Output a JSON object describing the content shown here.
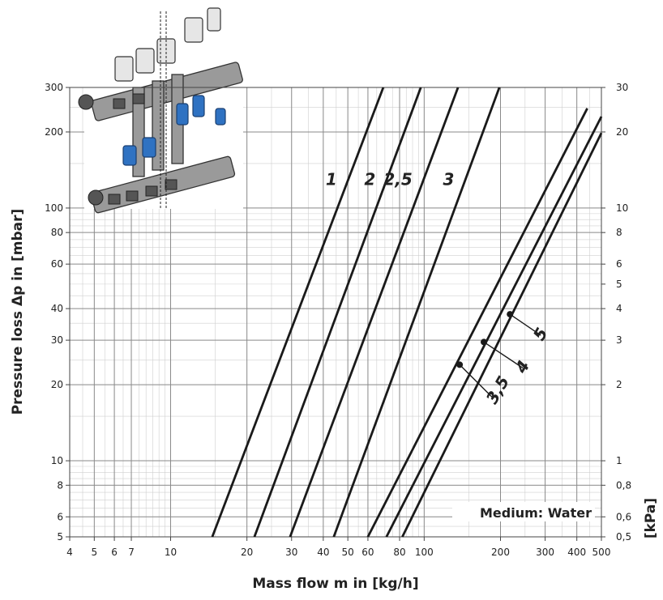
{
  "chart_data": {
    "type": "line",
    "title": "",
    "xlabel": "Mass flow m in [kg/h]",
    "ylabel_left": "Pressure loss Δp in [mbar]",
    "ylabel_right": "[kPa]",
    "x_scale": "log",
    "y_scale": "log",
    "xlim": [
      4,
      500
    ],
    "ylim": [
      5,
      300
    ],
    "grid": true,
    "annotation": "Medium: Water",
    "x_ticks": [
      {
        "v": 4,
        "label": "4"
      },
      {
        "v": 5,
        "label": "5"
      },
      {
        "v": 6,
        "label": "6"
      },
      {
        "v": 7,
        "label": "7"
      },
      {
        "v": 10,
        "label": "10"
      },
      {
        "v": 20,
        "label": "20"
      },
      {
        "v": 30,
        "label": "30"
      },
      {
        "v": 40,
        "label": "40"
      },
      {
        "v": 50,
        "label": "50"
      },
      {
        "v": 60,
        "label": "60"
      },
      {
        "v": 80,
        "label": "80"
      },
      {
        "v": 100,
        "label": "100"
      },
      {
        "v": 200,
        "label": "200"
      },
      {
        "v": 300,
        "label": "300"
      },
      {
        "v": 400,
        "label": "400"
      },
      {
        "v": 500,
        "label": "500"
      }
    ],
    "y_ticks_left": [
      {
        "v": 5,
        "label": "5"
      },
      {
        "v": 6,
        "label": "6"
      },
      {
        "v": 8,
        "label": "8"
      },
      {
        "v": 10,
        "label": "10"
      },
      {
        "v": 20,
        "label": "20"
      },
      {
        "v": 30,
        "label": "30"
      },
      {
        "v": 40,
        "label": "40"
      },
      {
        "v": 60,
        "label": "60"
      },
      {
        "v": 80,
        "label": "80"
      },
      {
        "v": 100,
        "label": "100"
      },
      {
        "v": 200,
        "label": "200"
      },
      {
        "v": 300,
        "label": "300"
      }
    ],
    "y_ticks_right": [
      {
        "v": 5,
        "label": "0,5"
      },
      {
        "v": 6,
        "label": "0,6"
      },
      {
        "v": 8,
        "label": "0,8"
      },
      {
        "v": 10,
        "label": "1"
      },
      {
        "v": 20,
        "label": "2"
      },
      {
        "v": 30,
        "label": "3"
      },
      {
        "v": 40,
        "label": "4"
      },
      {
        "v": 50,
        "label": "5"
      },
      {
        "v": 60,
        "label": "6"
      },
      {
        "v": 80,
        "label": "8"
      },
      {
        "v": 100,
        "label": "10"
      },
      {
        "v": 200,
        "label": "20"
      },
      {
        "v": 300,
        "label": "30"
      }
    ],
    "series": [
      {
        "name": "1",
        "x": [
          14.6,
          69
        ],
        "y": [
          5,
          300
        ]
      },
      {
        "name": "2",
        "x": [
          21.4,
          97
        ],
        "y": [
          5,
          300
        ]
      },
      {
        "name": "2,5",
        "x": [
          29.6,
          136
        ],
        "y": [
          5,
          300
        ]
      },
      {
        "name": "3",
        "x": [
          44,
          198
        ],
        "y": [
          5,
          300
        ]
      },
      {
        "name": "3,5",
        "x": [
          60,
          440
        ],
        "y": [
          5,
          248
        ]
      },
      {
        "name": "4",
        "x": [
          71,
          500
        ],
        "y": [
          5,
          230
        ]
      },
      {
        "name": "5",
        "x": [
          82,
          500
        ],
        "y": [
          5,
          198
        ]
      }
    ],
    "markers": [
      {
        "series": "3,5",
        "x": 138,
        "y": 24
      },
      {
        "series": "4",
        "x": 172,
        "y": 29.5
      },
      {
        "series": "5",
        "x": 218,
        "y": 38
      }
    ]
  }
}
